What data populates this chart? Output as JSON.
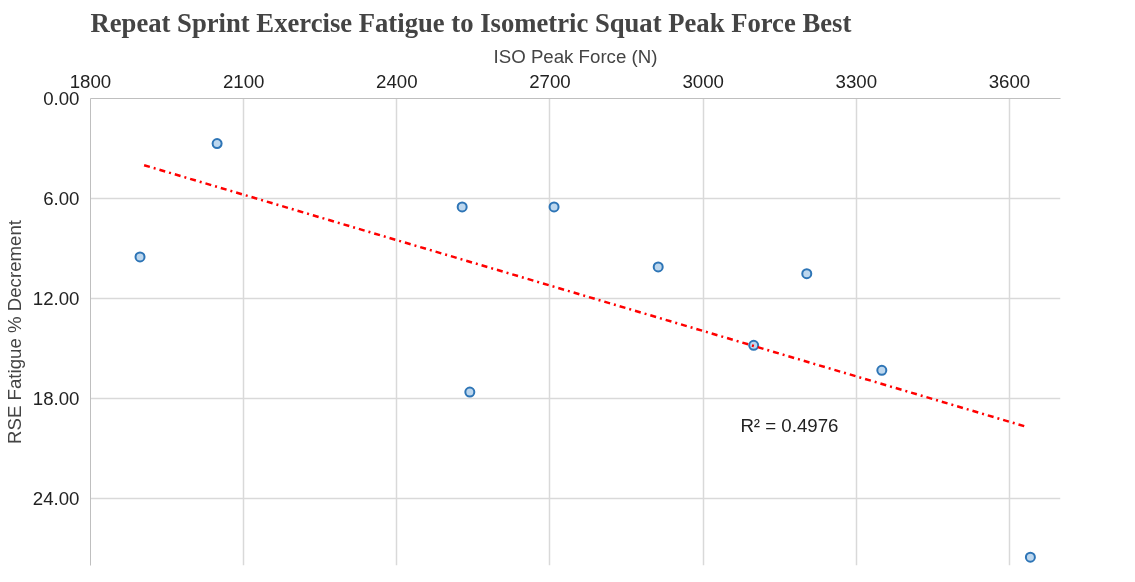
{
  "chart_data": {
    "type": "scatter",
    "title": "Repeat Sprint Exercise Fatigue to Isometric Squat Peak Force Best",
    "xlabel": "ISO Peak Force (N)",
    "ylabel": "RSE Fatigue % Decrement",
    "xlim": [
      1800,
      3700
    ],
    "xticks": [
      1800,
      2100,
      2400,
      2700,
      3000,
      3300,
      3600
    ],
    "ylim": [
      28,
      0
    ],
    "yticks": [
      {
        "value": 0,
        "label": "0.00"
      },
      {
        "value": 6,
        "label": "6.00"
      },
      {
        "value": 12,
        "label": "12.00"
      },
      {
        "value": 18,
        "label": "18.00"
      },
      {
        "value": 24,
        "label": "24.00"
      }
    ],
    "grid": true,
    "marker": "circle",
    "series": [
      {
        "color": "#2e75b6",
        "x": [
          1897,
          2048,
          2528,
          2543,
          2708,
          2912,
          3099,
          3203,
          3350,
          3641
        ],
        "values": [
          9.5,
          2.7,
          6.5,
          17.6,
          6.5,
          10.1,
          14.8,
          10.5,
          16.3,
          27.5
        ]
      },
      {
        "type": "line",
        "color": "#ff0000",
        "line_style": "dashed",
        "marker": "none",
        "x": [
          1905,
          3635
        ],
        "values": [
          4.0,
          19.7
        ]
      }
    ],
    "annotations": [
      "R² = 0.4976"
    ]
  }
}
